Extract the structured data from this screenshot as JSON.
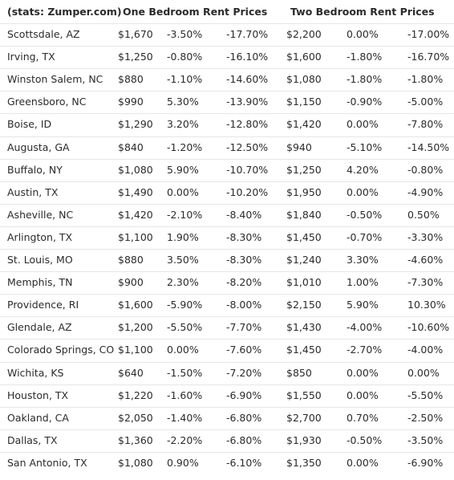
{
  "table": {
    "header": [
      "(stats: Zumper.com)",
      "One Bedroom Rent Prices",
      "Two Bedroom Rent Prices"
    ],
    "rows": [
      [
        "Scottsdale, AZ",
        "$1,670",
        "-3.50%",
        "-17.70%",
        "$2,200",
        "0.00%",
        "-17.00%"
      ],
      [
        "Irving, TX",
        "$1,250",
        "-0.80%",
        "-16.10%",
        "$1,600",
        "-1.80%",
        "-16.70%"
      ],
      [
        "Winston Salem, NC",
        "$880",
        "-1.10%",
        "-14.60%",
        "$1,080",
        "-1.80%",
        "-1.80%"
      ],
      [
        "Greensboro, NC",
        "$990",
        "5.30%",
        "-13.90%",
        "$1,150",
        "-0.90%",
        "-5.00%"
      ],
      [
        "Boise, ID",
        "$1,290",
        "3.20%",
        "-12.80%",
        "$1,420",
        "0.00%",
        "-7.80%"
      ],
      [
        "Augusta, GA",
        "$840",
        "-1.20%",
        "-12.50%",
        "$940",
        "-5.10%",
        "-14.50%"
      ],
      [
        "Buffalo, NY",
        "$1,080",
        "5.90%",
        "-10.70%",
        "$1,250",
        "4.20%",
        "-0.80%"
      ],
      [
        "Austin, TX",
        "$1,490",
        "0.00%",
        "-10.20%",
        "$1,950",
        "0.00%",
        "-4.90%"
      ],
      [
        "Asheville, NC",
        "$1,420",
        "-2.10%",
        "-8.40%",
        "$1,840",
        "-0.50%",
        "0.50%"
      ],
      [
        "Arlington, TX",
        "$1,100",
        "1.90%",
        "-8.30%",
        "$1,450",
        "-0.70%",
        "-3.30%"
      ],
      [
        "St. Louis, MO",
        "$880",
        "3.50%",
        "-8.30%",
        "$1,240",
        "3.30%",
        "-4.60%"
      ],
      [
        "Memphis, TN",
        "$900",
        "2.30%",
        "-8.20%",
        "$1,010",
        "1.00%",
        "-7.30%"
      ],
      [
        "Providence, RI",
        "$1,600",
        "-5.90%",
        "-8.00%",
        "$2,150",
        "5.90%",
        "10.30%"
      ],
      [
        "Glendale, AZ",
        "$1,200",
        "-5.50%",
        "-7.70%",
        "$1,430",
        "-4.00%",
        "-10.60%"
      ],
      [
        "Colorado Springs, CO",
        "$1,100",
        "0.00%",
        "-7.60%",
        "$1,450",
        "-2.70%",
        "-4.00%"
      ],
      [
        "Wichita, KS",
        "$640",
        "-1.50%",
        "-7.20%",
        "$850",
        "0.00%",
        "0.00%"
      ],
      [
        "Houston, TX",
        "$1,220",
        "-1.60%",
        "-6.90%",
        "$1,550",
        "0.00%",
        "-5.50%"
      ],
      [
        "Oakland, CA",
        "$2,050",
        "-1.40%",
        "-6.80%",
        "$2,700",
        "0.70%",
        "-2.50%"
      ],
      [
        "Dallas, TX",
        "$1,360",
        "-2.20%",
        "-6.80%",
        "$1,930",
        "-0.50%",
        "-3.50%"
      ],
      [
        "San Antonio, TX",
        "$1,080",
        "0.90%",
        "-6.10%",
        "$1,350",
        "0.00%",
        "-6.90%"
      ]
    ]
  }
}
